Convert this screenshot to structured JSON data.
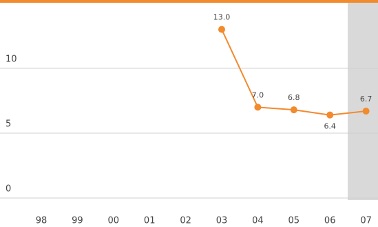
{
  "chart_data": {
    "type": "line",
    "categories": [
      "98",
      "99",
      "00",
      "01",
      "02",
      "03",
      "04",
      "05",
      "06",
      "07"
    ],
    "series": [
      {
        "color": "#f28a2e",
        "values": [
          null,
          null,
          null,
          null,
          null,
          13.0,
          7.0,
          6.8,
          6.4,
          6.7
        ],
        "value_labels": [
          null,
          null,
          null,
          null,
          null,
          "13.0",
          "7.0",
          "6.8",
          "6.4",
          "6.7"
        ]
      }
    ],
    "ylim": [
      0,
      15
    ],
    "yticks": [
      0,
      5,
      10
    ],
    "grid": true
  }
}
